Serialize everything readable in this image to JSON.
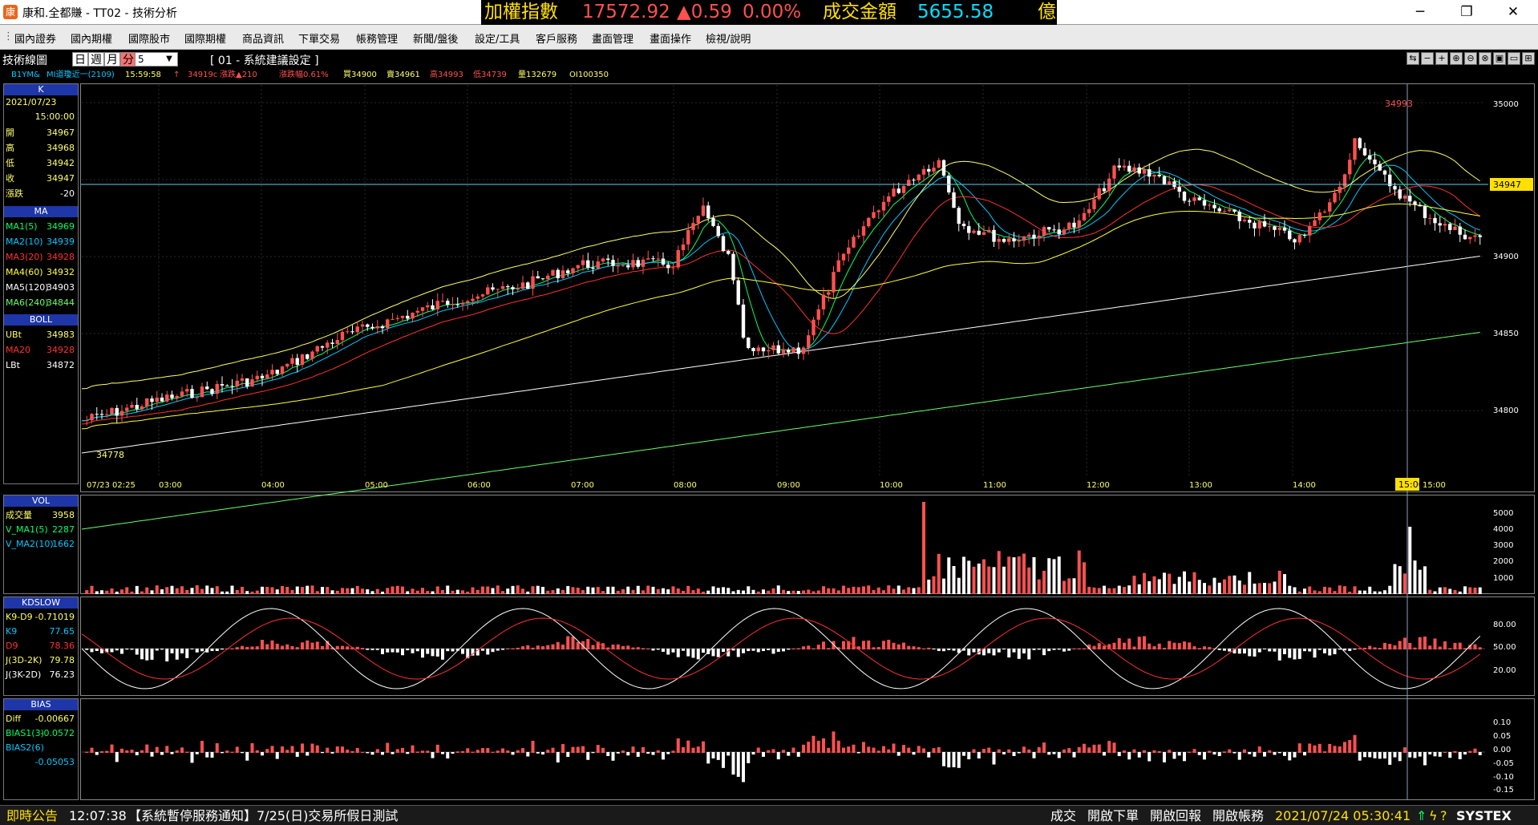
{
  "window": {
    "title": "康和.全都賺 - TT02 - 技術分析",
    "icon_glyph": "康"
  },
  "ticker": {
    "label1": "加權指數",
    "index": "17572.92",
    "change": "▲0.59",
    "change_pct": "0.00%",
    "label2": "成交金額",
    "amount": "5655.58",
    "unit": "億"
  },
  "window_buttons": {
    "minimize": "─",
    "restore": "❐",
    "close": "✕"
  },
  "menu": [
    "國內證券",
    "國內期權",
    "國際股市",
    "國際期權",
    "商品資訊",
    "下單交易",
    "帳務管理",
    "新聞/盤後",
    "設定/工具",
    "客戶服務",
    "畫面管理",
    "畫面操作",
    "檢視/說明"
  ],
  "toolbar": {
    "chart_name": "技術線圖",
    "periods": [
      "日",
      "週",
      "月",
      "分"
    ],
    "period_value": "5",
    "period_arrow": "▼",
    "settings_label": "[ 01 - 系統建議設定 ]",
    "buttons": [
      "⇆",
      "−",
      "+",
      "⊕",
      "⊖",
      "⊗",
      "▣",
      "▭",
      "⊞"
    ]
  },
  "quote": {
    "symbol": "B1YM&",
    "name": "MI道瓊近一(2109)",
    "time": "15:59:58",
    "arrow": "↑",
    "last": "34919c",
    "change": "漲跌▲210",
    "change_pct": "漲跌幅0.61%",
    "buy": "買34900",
    "sell": "賣34961",
    "high": "高34993",
    "low": "低34739",
    "volume": "量132679",
    "oi": "OI100350"
  },
  "colors": {
    "up": "#ff5050",
    "down": "#ffffff",
    "ma1": "#00ff66",
    "ma2": "#00c8ff",
    "ma3": "#ff3030",
    "ma4": "#ffff33",
    "ma5": "#ffffff",
    "ma6": "#66ff66",
    "label_yellow": "#ffff66",
    "accent": "#ffe000"
  },
  "k_panel": {
    "title": "K",
    "date": "2021/07/23",
    "time": "15:00:00",
    "rows": [
      [
        "開",
        "34967"
      ],
      [
        "高",
        "34968"
      ],
      [
        "低",
        "34942"
      ],
      [
        "收",
        "34947"
      ],
      [
        "漲跌",
        "-20"
      ]
    ]
  },
  "ma_panel": {
    "title": "MA",
    "rows": [
      [
        "MA1(5)",
        "34969"
      ],
      [
        "MA2(10)",
        "34939"
      ],
      [
        "MA3(20)",
        "34928"
      ],
      [
        "MA4(60)",
        "34932"
      ],
      [
        "MA5(120)",
        "34903"
      ],
      [
        "MA6(240)",
        "34844"
      ]
    ]
  },
  "boll_panel": {
    "title": "BOLL",
    "rows": [
      [
        "UBt",
        "34983"
      ],
      [
        "MA20",
        "34928"
      ],
      [
        "LBt",
        "34872"
      ]
    ]
  },
  "vol_panel": {
    "title": "VOL",
    "rows": [
      [
        "成交量",
        "3958"
      ],
      [
        "V_MA1(5)",
        "2287"
      ],
      [
        "V_MA2(10)",
        "1662"
      ]
    ]
  },
  "kd_panel": {
    "title": "KDSLOW",
    "rows": [
      [
        "K9-D9",
        "-0.71019"
      ],
      [
        "K9",
        "77.65"
      ],
      [
        "D9",
        "78.36"
      ],
      [
        "J(3D-2K)",
        "79.78"
      ],
      [
        "J(3K-2D)",
        "76.23"
      ]
    ]
  },
  "bias_panel": {
    "title": "BIAS",
    "rows": [
      [
        "Diff",
        "-0.00667"
      ],
      [
        "BIAS1(3)",
        "-0.0572"
      ],
      [
        "BIAS2(6)",
        ""
      ],
      [
        "",
        "-0.05053"
      ]
    ]
  },
  "axis": {
    "price_ticks": [
      "35000",
      "34950",
      "34900",
      "34850",
      "34800"
    ],
    "current_price": "34947",
    "high_label": "34993",
    "low_label": "34778",
    "time_labels": [
      "07/23 02:25",
      "03:00",
      "04:00",
      "05:00",
      "06:00",
      "07:00",
      "08:00",
      "09:00",
      "10:00",
      "11:00",
      "12:00",
      "13:00",
      "14:00",
      "15:00",
      "15:00"
    ],
    "vol_ticks": [
      "5000",
      "4000",
      "3000",
      "2000",
      "1000"
    ],
    "kd_ticks": [
      "80.00",
      "50.00",
      "20.00"
    ],
    "bias_ticks": [
      "0.10",
      "0.05",
      "0.00",
      "-0.05",
      "-0.10",
      "-0.15"
    ]
  },
  "status": {
    "label": "即時公告",
    "time": "12:07:38",
    "notice": "【系統暫停服務通知】7/25(日)交易所假日測試",
    "links": [
      "成交",
      "開啟下單",
      "開啟回報",
      "開啟帳務"
    ],
    "datetime": "2021/07/24 05:30:41",
    "brand": "SYSTEX"
  }
}
